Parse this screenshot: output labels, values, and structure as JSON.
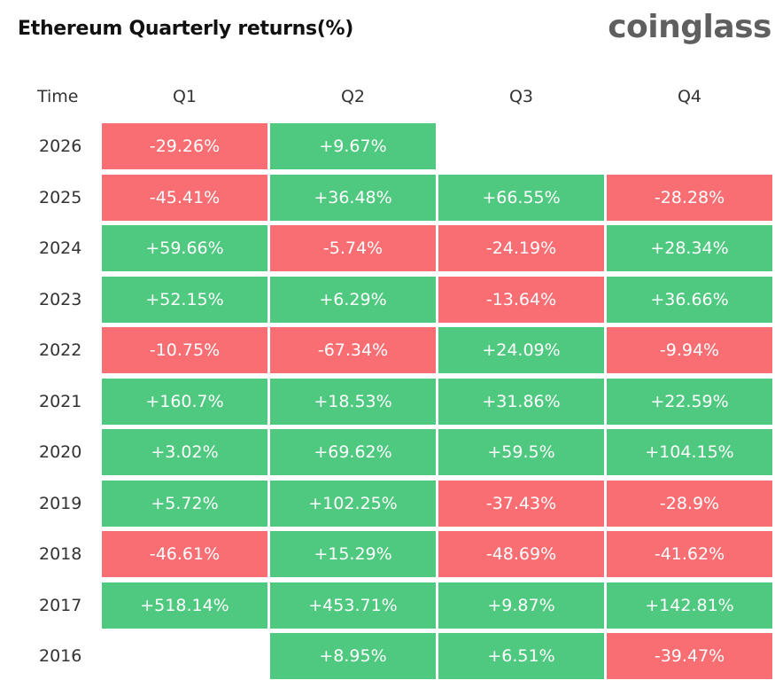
{
  "chart_data": {
    "type": "table",
    "title": "Ethereum Quarterly returns(%)",
    "columns": [
      "Time",
      "Q1",
      "Q2",
      "Q3",
      "Q4"
    ],
    "rows": [
      {
        "year": "2026",
        "values": [
          "-29.26%",
          "+9.67%",
          null,
          null
        ]
      },
      {
        "year": "2025",
        "values": [
          "-45.41%",
          "+36.48%",
          "+66.55%",
          "-28.28%"
        ]
      },
      {
        "year": "2024",
        "values": [
          "+59.66%",
          "-5.74%",
          "-24.19%",
          "+28.34%"
        ]
      },
      {
        "year": "2023",
        "values": [
          "+52.15%",
          "+6.29%",
          "-13.64%",
          "+36.66%"
        ]
      },
      {
        "year": "2022",
        "values": [
          "-10.75%",
          "-67.34%",
          "+24.09%",
          "-9.94%"
        ]
      },
      {
        "year": "2021",
        "values": [
          "+160.7%",
          "+18.53%",
          "+31.86%",
          "+22.59%"
        ]
      },
      {
        "year": "2020",
        "values": [
          "+3.02%",
          "+69.62%",
          "+59.5%",
          "+104.15%"
        ]
      },
      {
        "year": "2019",
        "values": [
          "+5.72%",
          "+102.25%",
          "-37.43%",
          "-28.9%"
        ]
      },
      {
        "year": "2018",
        "values": [
          "-46.61%",
          "+15.29%",
          "-48.69%",
          "-41.62%"
        ]
      },
      {
        "year": "2017",
        "values": [
          "+518.14%",
          "+453.71%",
          "+9.87%",
          "+142.81%"
        ]
      },
      {
        "year": "2016",
        "values": [
          null,
          "+8.95%",
          "+6.51%",
          "-39.47%"
        ]
      }
    ],
    "colors": {
      "positive": "#4fc97f",
      "negative": "#f96e73"
    }
  },
  "brand": "coinglass"
}
